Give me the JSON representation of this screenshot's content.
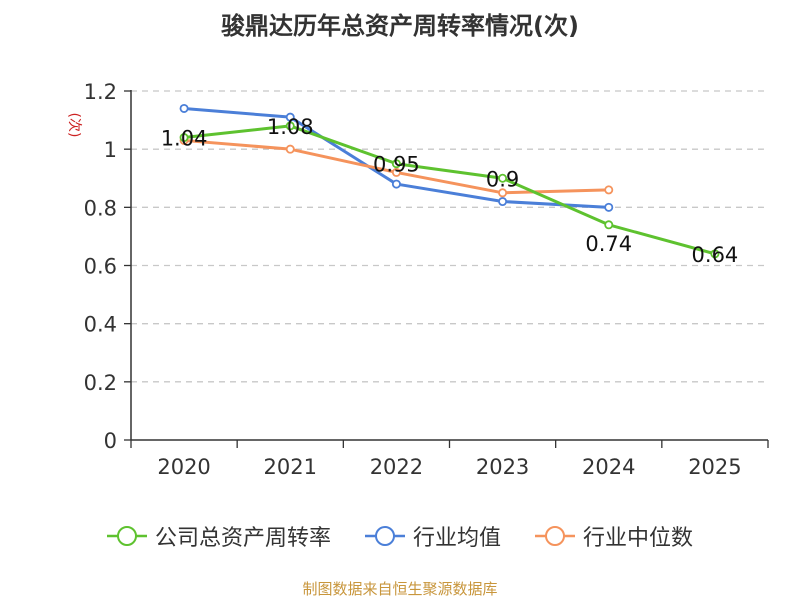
{
  "chart_data": {
    "type": "line",
    "title": "骏鼎达历年总资产周转率情况(次)",
    "ylabel": "(次)",
    "categories": [
      "2020",
      "2021",
      "2022",
      "2023",
      "2024",
      "2025"
    ],
    "y_ticks": [
      "0",
      "0.2",
      "0.4",
      "0.6",
      "0.8",
      "1",
      "1.2"
    ],
    "ylim": [
      0,
      1.2
    ],
    "grid": true,
    "legend_position": "bottom",
    "series": [
      {
        "name": "公司总资产周转率",
        "color": "#5ec22f",
        "values": [
          1.04,
          1.08,
          0.95,
          0.9,
          0.74,
          0.64
        ],
        "labels": [
          "1.04",
          "1.08",
          "0.95",
          "0.9",
          "0.74",
          "0.64"
        ]
      },
      {
        "name": "行业均值",
        "color": "#4b7fd8",
        "values": [
          1.14,
          1.11,
          0.88,
          0.82,
          0.8,
          null
        ]
      },
      {
        "name": "行业中位数",
        "color": "#f5935c",
        "values": [
          1.03,
          1.0,
          0.92,
          0.85,
          0.86,
          null
        ]
      }
    ]
  },
  "source": "制图数据来自恒生聚源数据库"
}
